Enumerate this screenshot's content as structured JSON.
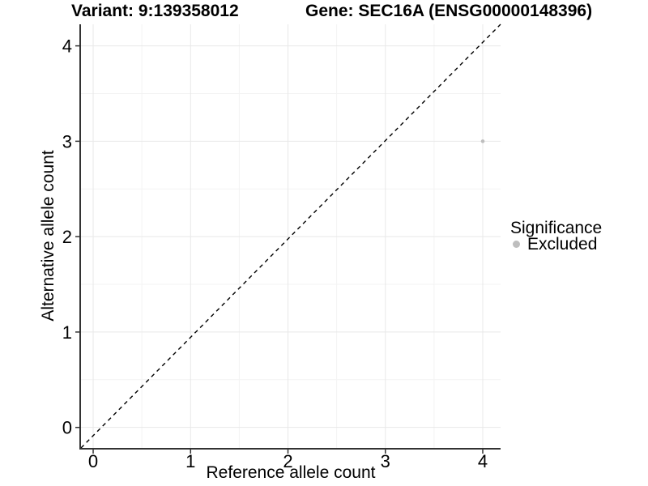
{
  "figure": {
    "title_left": "Variant: 9:139358012",
    "title_right": "Gene: SEC16A (ENSG00000148396)"
  },
  "chart_data": {
    "type": "scatter",
    "title": "Variant: 9:139358012    Gene: SEC16A (ENSG00000148396)",
    "xlabel": "Reference allele count",
    "ylabel": "Alternative allele count",
    "xlim": [
      -0.125,
      4.183
    ],
    "ylim": [
      -0.215,
      4.226
    ],
    "xticks": [
      0,
      1,
      2,
      3,
      4
    ],
    "yticks": [
      0,
      1,
      2,
      3,
      4
    ],
    "grid": {
      "major": true,
      "minor": true,
      "major_color": "#e8e8e8",
      "minor_color": "#f3f3f3"
    },
    "reference_line": {
      "kind": "identity y=x",
      "style": "dashed",
      "color": "#000000"
    },
    "series": [
      {
        "name": "Excluded",
        "color": "#bebebe",
        "points": [
          {
            "x": 4,
            "y": 3
          }
        ]
      }
    ],
    "legend": {
      "title": "Significance",
      "position": "right",
      "entries": [
        {
          "label": "Excluded",
          "color": "#bebebe"
        }
      ]
    },
    "axis_color": "#333333",
    "text_color": "#000000"
  }
}
